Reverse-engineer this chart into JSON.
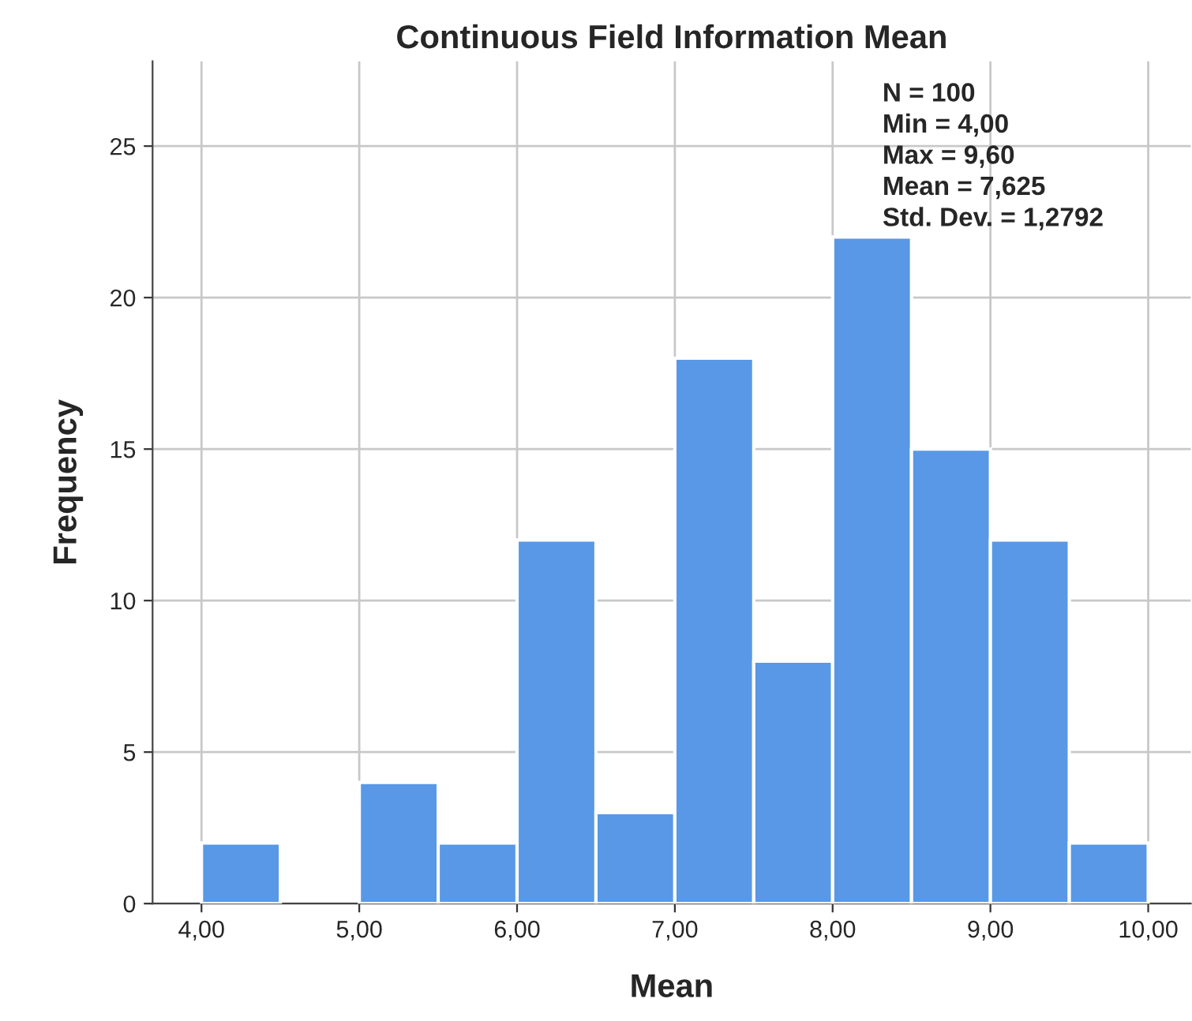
{
  "chart_data": {
    "type": "histogram",
    "title": "Continuous Field Information Mean",
    "xlabel": "Mean",
    "ylabel": "Frequency",
    "bins": [
      4.0,
      4.5,
      5.0,
      5.5,
      6.0,
      6.5,
      7.0,
      7.5,
      8.0,
      8.5,
      9.0,
      9.5,
      10.0
    ],
    "values": [
      2,
      0,
      4,
      2,
      12,
      3,
      18,
      8,
      22,
      15,
      12,
      2
    ],
    "color": "#5898e6",
    "xlim": [
      3.69,
      10.27
    ],
    "ylim": [
      0,
      27.8
    ],
    "xticks": [
      {
        "value": 4,
        "label": "4,00"
      },
      {
        "value": 5,
        "label": "5,00"
      },
      {
        "value": 6,
        "label": "6,00"
      },
      {
        "value": 7,
        "label": "7,00"
      },
      {
        "value": 8,
        "label": "8,00"
      },
      {
        "value": 9,
        "label": "9,00"
      },
      {
        "value": 10,
        "label": "10,00"
      }
    ],
    "yticks": [
      0,
      5,
      10,
      15,
      20,
      25
    ],
    "grid": true,
    "annotations": [
      "N = 100",
      "Min = 4,00",
      "Max = 9,60",
      "Mean = 7,625",
      "Std. Dev. = 1,2792"
    ]
  }
}
